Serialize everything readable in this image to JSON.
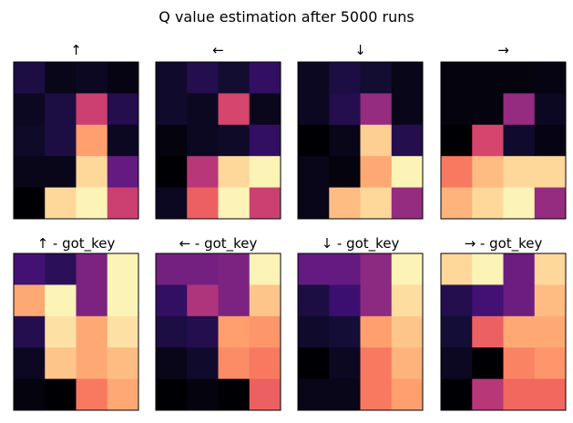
{
  "figure_title": "Q value estimation after 5000 runs",
  "chart_data": [
    {
      "type": "heatmap",
      "title": "↑",
      "colormap": "magma",
      "rows": 5,
      "cols": 4,
      "values": [
        [
          0.12,
          0.04,
          0.06,
          0.03
        ],
        [
          0.06,
          0.12,
          0.55,
          0.14
        ],
        [
          0.07,
          0.12,
          0.8,
          0.06
        ],
        [
          0.04,
          0.04,
          0.92,
          0.3
        ],
        [
          0.0,
          0.92,
          0.98,
          0.55
        ]
      ]
    },
    {
      "type": "heatmap",
      "title": "←",
      "colormap": "magma",
      "rows": 5,
      "cols": 4,
      "values": [
        [
          0.08,
          0.14,
          0.09,
          0.18
        ],
        [
          0.08,
          0.06,
          0.58,
          0.05
        ],
        [
          0.02,
          0.06,
          0.07,
          0.18
        ],
        [
          0.0,
          0.5,
          0.92,
          0.98
        ],
        [
          0.06,
          0.66,
          0.98,
          0.55
        ]
      ]
    },
    {
      "type": "heatmap",
      "title": "↓",
      "colormap": "magma",
      "rows": 5,
      "cols": 4,
      "values": [
        [
          0.06,
          0.12,
          0.09,
          0.04
        ],
        [
          0.06,
          0.14,
          0.42,
          0.04
        ],
        [
          0.0,
          0.04,
          0.9,
          0.14
        ],
        [
          0.04,
          0.02,
          0.82,
          0.98
        ],
        [
          0.04,
          0.86,
          0.92,
          0.42
        ]
      ]
    },
    {
      "type": "heatmap",
      "title": "→",
      "colormap": "magma",
      "rows": 5,
      "cols": 4,
      "values": [
        [
          0.02,
          0.02,
          0.02,
          0.03
        ],
        [
          0.02,
          0.02,
          0.42,
          0.06
        ],
        [
          0.0,
          0.58,
          0.08,
          0.03
        ],
        [
          0.72,
          0.86,
          0.92,
          0.92
        ],
        [
          0.84,
          0.92,
          0.98,
          0.42
        ]
      ]
    },
    {
      "type": "heatmap",
      "title": "↑ - got_key",
      "colormap": "magma",
      "rows": 5,
      "cols": 4,
      "values": [
        [
          0.22,
          0.16,
          0.36,
          0.98
        ],
        [
          0.82,
          0.98,
          0.36,
          0.98
        ],
        [
          0.14,
          0.94,
          0.82,
          0.94
        ],
        [
          0.06,
          0.88,
          0.82,
          0.86
        ],
        [
          0.02,
          0.0,
          0.72,
          0.82
        ]
      ]
    },
    {
      "type": "heatmap",
      "title": "← - got_key",
      "colormap": "magma",
      "rows": 5,
      "cols": 4,
      "values": [
        [
          0.34,
          0.34,
          0.36,
          0.98
        ],
        [
          0.18,
          0.48,
          0.36,
          0.88
        ],
        [
          0.12,
          0.14,
          0.8,
          0.78
        ],
        [
          0.04,
          0.08,
          0.76,
          0.72
        ],
        [
          0.0,
          0.02,
          0.0,
          0.66
        ]
      ]
    },
    {
      "type": "heatmap",
      "title": "↓ - got_key",
      "colormap": "magma",
      "rows": 5,
      "cols": 4,
      "values": [
        [
          0.3,
          0.3,
          0.4,
          0.98
        ],
        [
          0.12,
          0.2,
          0.4,
          0.93
        ],
        [
          0.08,
          0.1,
          0.8,
          0.88
        ],
        [
          0.0,
          0.06,
          0.72,
          0.84
        ],
        [
          0.04,
          0.04,
          0.72,
          0.8
        ]
      ]
    },
    {
      "type": "heatmap",
      "title": "→ - got_key",
      "colormap": "magma",
      "rows": 5,
      "cols": 4,
      "values": [
        [
          0.92,
          0.98,
          0.32,
          0.92
        ],
        [
          0.14,
          0.22,
          0.32,
          0.86
        ],
        [
          0.1,
          0.66,
          0.82,
          0.82
        ],
        [
          0.06,
          0.0,
          0.74,
          0.78
        ],
        [
          0.0,
          0.5,
          0.68,
          0.68
        ]
      ]
    }
  ]
}
